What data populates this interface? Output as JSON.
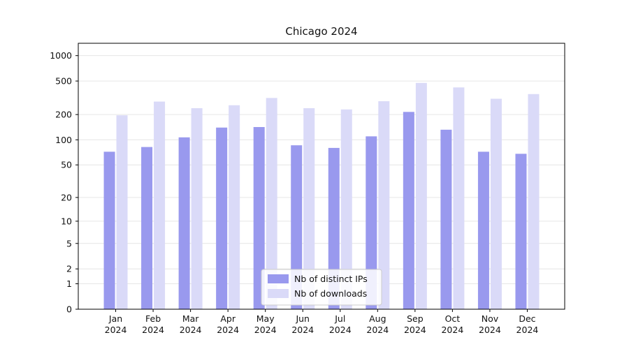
{
  "title": "Chicago 2024",
  "chart_data": {
    "type": "bar",
    "title": "Chicago 2024",
    "categories": [
      "Jan 2024",
      "Feb 2024",
      "Mar 2024",
      "Apr 2024",
      "May 2024",
      "Jun 2024",
      "Jul 2024",
      "Aug 2024",
      "Sep 2024",
      "Oct 2024",
      "Nov 2024",
      "Dec 2024"
    ],
    "series": [
      {
        "name": "Nb of distinct IPs",
        "color": "#9999ee",
        "values": [
          72,
          82,
          107,
          140,
          142,
          86,
          80,
          110,
          215,
          132,
          72,
          68
        ]
      },
      {
        "name": "Nb of downloads",
        "color": "#dadaf8",
        "values": [
          196,
          285,
          238,
          258,
          315,
          238,
          230,
          288,
          475,
          420,
          308,
          350
        ]
      }
    ],
    "yscale": "log1p",
    "yticks": [
      0,
      1,
      2,
      5,
      10,
      20,
      50,
      100,
      200,
      500,
      1000
    ],
    "ylim": [
      0,
      1400
    ],
    "grid": true,
    "legend_position": "lower center",
    "xlabel": "",
    "ylabel": ""
  },
  "colors": {
    "grid": "#e6e6e6",
    "spine": "#000000",
    "text": "#111111",
    "legend_border": "#cccccc",
    "legend_bg": "#ffffff"
  }
}
